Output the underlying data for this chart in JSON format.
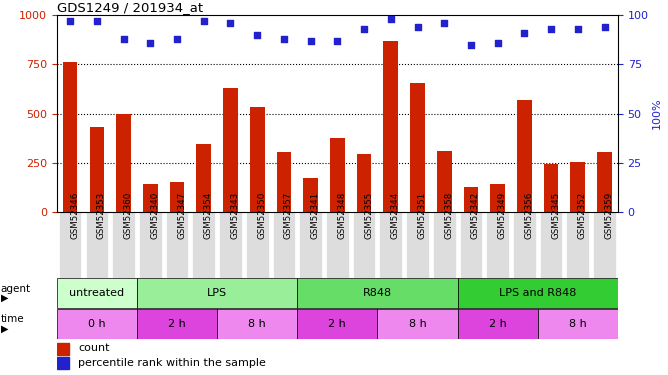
{
  "title": "GDS1249 / 201934_at",
  "categories": [
    "GSM52346",
    "GSM52353",
    "GSM52360",
    "GSM52340",
    "GSM52347",
    "GSM52354",
    "GSM52343",
    "GSM52350",
    "GSM52357",
    "GSM52341",
    "GSM52348",
    "GSM52355",
    "GSM52344",
    "GSM52351",
    "GSM52358",
    "GSM52342",
    "GSM52349",
    "GSM52356",
    "GSM52345",
    "GSM52352",
    "GSM52359"
  ],
  "counts": [
    760,
    430,
    500,
    145,
    155,
    345,
    630,
    535,
    305,
    175,
    375,
    295,
    870,
    655,
    310,
    130,
    145,
    570,
    245,
    255,
    305
  ],
  "percentiles": [
    97,
    97,
    88,
    86,
    88,
    97,
    96,
    90,
    88,
    87,
    87,
    93,
    98,
    94,
    96,
    85,
    86,
    91,
    93,
    93,
    94
  ],
  "bar_color": "#cc2200",
  "dot_color": "#2222cc",
  "left_yaxis_color": "#cc2200",
  "right_yaxis_color": "#2222cc",
  "ylim_left": [
    0,
    1000
  ],
  "ylim_right": [
    0,
    100
  ],
  "yticks_left": [
    0,
    250,
    500,
    750,
    1000
  ],
  "yticks_right": [
    0,
    25,
    50,
    75,
    100
  ],
  "grid_values": [
    250,
    500,
    750
  ],
  "agent_groups": [
    {
      "label": "untreated",
      "start": 0,
      "end": 3,
      "color": "#ccffcc"
    },
    {
      "label": "LPS",
      "start": 3,
      "end": 9,
      "color": "#99ee99"
    },
    {
      "label": "R848",
      "start": 9,
      "end": 15,
      "color": "#66dd66"
    },
    {
      "label": "LPS and R848",
      "start": 15,
      "end": 21,
      "color": "#33cc33"
    }
  ],
  "time_groups": [
    {
      "label": "0 h",
      "start": 0,
      "end": 3,
      "color": "#ee88ee"
    },
    {
      "label": "2 h",
      "start": 3,
      "end": 6,
      "color": "#dd44dd"
    },
    {
      "label": "8 h",
      "start": 6,
      "end": 9,
      "color": "#ee88ee"
    },
    {
      "label": "2 h",
      "start": 9,
      "end": 12,
      "color": "#dd44dd"
    },
    {
      "label": "8 h",
      "start": 12,
      "end": 15,
      "color": "#ee88ee"
    },
    {
      "label": "2 h",
      "start": 15,
      "end": 18,
      "color": "#dd44dd"
    },
    {
      "label": "8 h",
      "start": 18,
      "end": 21,
      "color": "#ee88ee"
    }
  ],
  "legend_count_label": "count",
  "legend_percentile_label": "percentile rank within the sample",
  "bar_width": 0.55,
  "tick_label_bg": "#dddddd"
}
